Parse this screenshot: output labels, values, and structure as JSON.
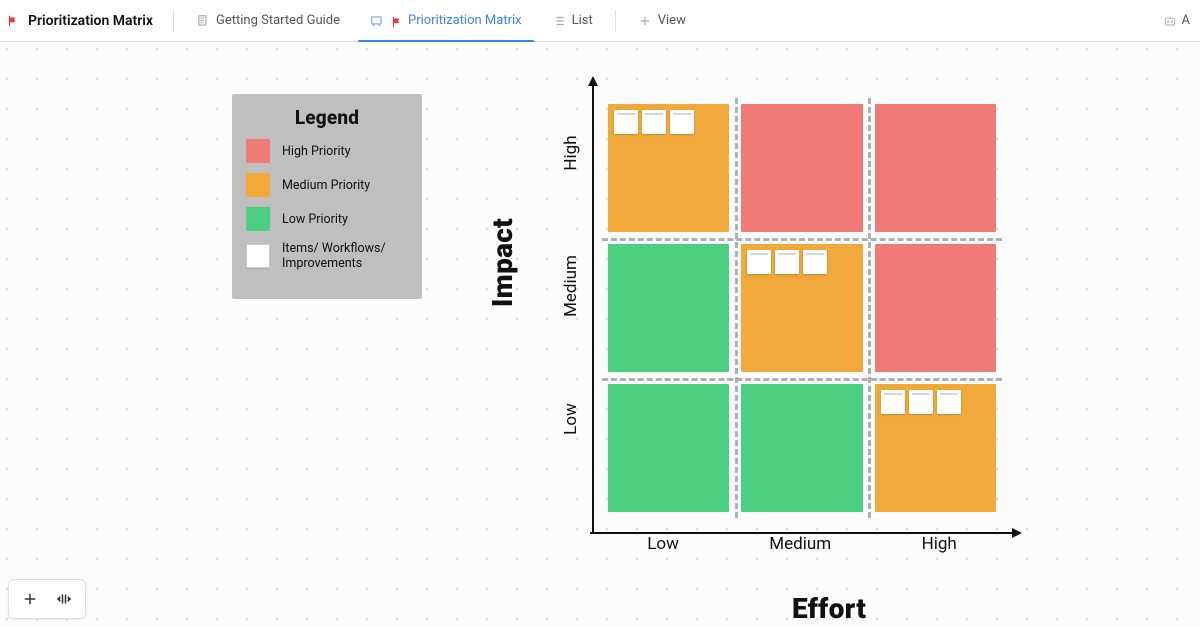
{
  "header": {
    "title": "Prioritization Matrix",
    "tabs": [
      {
        "label": "Getting Started Guide",
        "icon": "doc",
        "active": false
      },
      {
        "label": "Prioritization Matrix",
        "icon": "whiteboard",
        "active": true,
        "flag": true
      },
      {
        "label": "List",
        "icon": "list",
        "active": false
      }
    ],
    "add_view_label": "View",
    "right_label": "A"
  },
  "legend": {
    "title": "Legend",
    "items": [
      {
        "label": "High Priority",
        "color": "#f07a76"
      },
      {
        "label": "Medium Priority",
        "color": "#f2a93c"
      },
      {
        "label": "Low Priority",
        "color": "#4cd080"
      },
      {
        "label": "Items/ Workflows/ Improvements",
        "color": "#ffffff",
        "bordered": true
      }
    ],
    "bg": "#BFBFBF"
  },
  "matrix": {
    "x_axis_label": "Effort",
    "y_axis_label": "Impact",
    "x_ticks": [
      "Low",
      "Medium",
      "High"
    ],
    "y_ticks": [
      "Low",
      "Medium",
      "High"
    ],
    "colors": {
      "high": "#f07a76",
      "medium": "#f2a93c",
      "low": "#4cd080"
    },
    "cells": [
      [
        {
          "priority": "medium",
          "notes": 3
        },
        {
          "priority": "high",
          "notes": 0
        },
        {
          "priority": "high",
          "notes": 0
        }
      ],
      [
        {
          "priority": "low",
          "notes": 0
        },
        {
          "priority": "medium",
          "notes": 3
        },
        {
          "priority": "high",
          "notes": 0
        }
      ],
      [
        {
          "priority": "low",
          "notes": 0
        },
        {
          "priority": "low",
          "notes": 0
        },
        {
          "priority": "medium",
          "notes": 3
        }
      ]
    ],
    "axis_color": "#111111",
    "grid_dash_color": "#b0b0b0",
    "note_color": "#ffffff",
    "label_fontsize": 28,
    "tick_fontsize": 17
  },
  "canvas": {
    "dot_color": "#d8dde4",
    "dot_spacing": 30,
    "bg": "#fbfcfd"
  }
}
